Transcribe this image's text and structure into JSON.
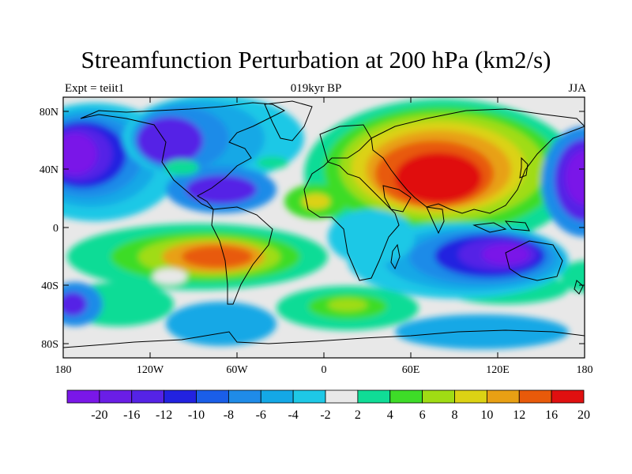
{
  "map": {
    "title": "Streamfunction Perturbation at 200 hPa (km2/s)",
    "left_label": "Expt = teiit1",
    "center_label": "019kyr BP",
    "right_label": "JJA",
    "projection": "cylindrical equidistant",
    "lat_ticks": [
      "80N",
      "40N",
      "0",
      "40S",
      "80S"
    ],
    "lon_ticks": [
      "180",
      "120W",
      "60W",
      "0",
      "60E",
      "120E",
      "180"
    ],
    "colorbar": {
      "labels": [
        "-20",
        "-16",
        "-12",
        "-10",
        "-8",
        "-6",
        "-4",
        "-2",
        "2",
        "4",
        "6",
        "8",
        "10",
        "12",
        "16",
        "20"
      ],
      "colors": [
        "#7a17e8",
        "#6a1ee6",
        "#5523e6",
        "#2222e0",
        "#1a5ee8",
        "#1f8be8",
        "#14a8e6",
        "#1ec8e6",
        "#e8e8e8",
        "#10dc96",
        "#3edc28",
        "#a0dc14",
        "#dcd214",
        "#e8a014",
        "#e85a0a",
        "#e01010"
      ]
    }
  }
}
